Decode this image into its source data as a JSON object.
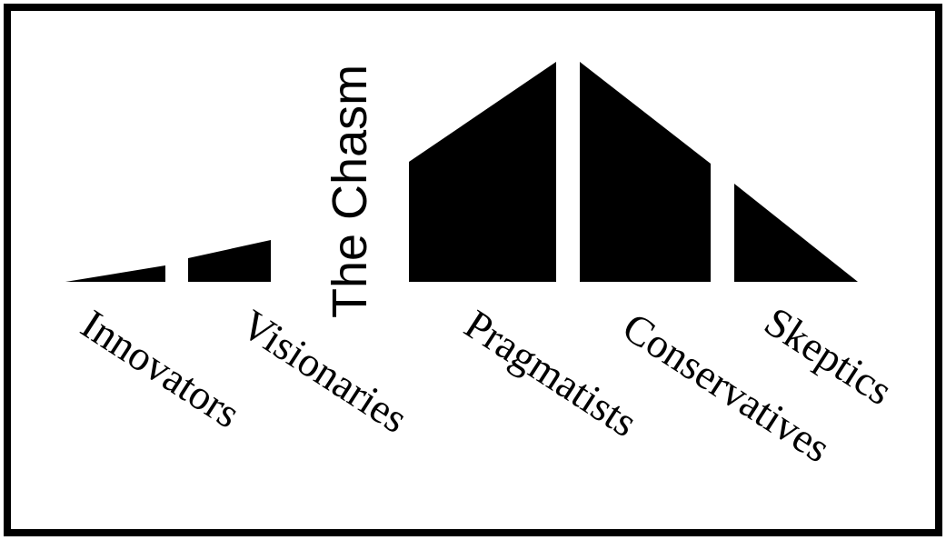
{
  "diagram": {
    "chasm_label": "The Chasm",
    "segments": [
      {
        "label": "Innovators"
      },
      {
        "label": "Visionaries"
      },
      {
        "label": "Pragmatists"
      },
      {
        "label": "Conservatives"
      },
      {
        "label": "Skeptics"
      }
    ]
  },
  "colors": {
    "fill": "#000000",
    "background": "#ffffff",
    "frame": "#000000"
  }
}
